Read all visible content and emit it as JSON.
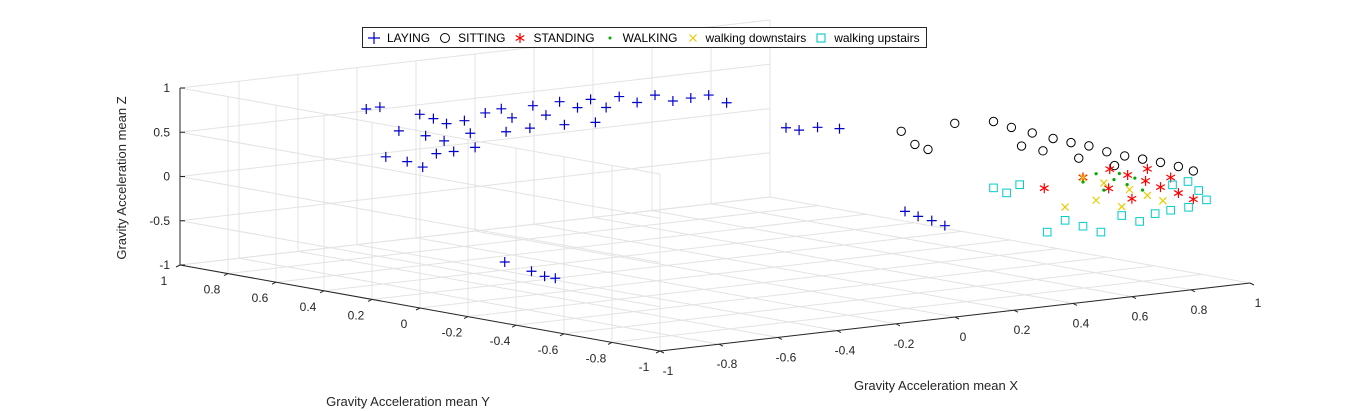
{
  "chart_data": {
    "type": "scatter3d",
    "title": "",
    "xlabel": "Gravity Acceleration mean X",
    "ylabel": "Gravity Acceleration mean Y",
    "zlabel": "Gravity Acceleration mean Z",
    "xlim": [
      -1,
      1
    ],
    "ylim": [
      -1,
      1
    ],
    "zlim": [
      -1,
      1
    ],
    "xticks": [
      "-1",
      "-0.8",
      "-0.6",
      "-0.4",
      "-0.2",
      "0",
      "0.2",
      "0.4",
      "0.6",
      "0.8",
      "1"
    ],
    "yticks": [
      "-1",
      "-0.8",
      "-0.6",
      "-0.4",
      "-0.2",
      "0",
      "0.2",
      "0.4",
      "0.6",
      "0.8",
      "1"
    ],
    "zticks": [
      "-1",
      "-0.5",
      "0",
      "0.5",
      "1"
    ],
    "grid": true,
    "legend_position": "top-center",
    "series": [
      {
        "name": "LAYING",
        "marker": "+",
        "color": "#0000cc",
        "points": [
          [
            -0.35,
            0.8,
            0.55
          ],
          [
            -0.32,
            0.78,
            0.5
          ],
          [
            -0.3,
            0.75,
            0.45
          ],
          [
            -0.28,
            0.7,
            0.5
          ],
          [
            -0.38,
            0.85,
            0.35
          ],
          [
            -0.33,
            0.8,
            0.3
          ],
          [
            -0.3,
            0.76,
            0.25
          ],
          [
            -0.26,
            0.7,
            0.35
          ],
          [
            -0.4,
            0.88,
            0.05
          ],
          [
            -0.36,
            0.84,
            0.0
          ],
          [
            -0.34,
            0.8,
            -0.05
          ],
          [
            -0.31,
            0.78,
            0.1
          ],
          [
            -0.25,
            0.65,
            0.6
          ],
          [
            -0.22,
            0.62,
            0.65
          ],
          [
            -0.2,
            0.6,
            0.55
          ],
          [
            -0.17,
            0.55,
            0.7
          ],
          [
            -0.15,
            0.52,
            0.6
          ],
          [
            -0.12,
            0.5,
            0.75
          ],
          [
            -0.1,
            0.45,
            0.7
          ],
          [
            -0.08,
            0.42,
            0.8
          ],
          [
            -0.06,
            0.38,
            0.72
          ],
          [
            -0.04,
            0.35,
            0.85
          ],
          [
            -0.02,
            0.3,
            0.8
          ],
          [
            0.0,
            0.25,
            0.9
          ],
          [
            0.02,
            0.2,
            0.85
          ],
          [
            0.04,
            0.15,
            0.9
          ],
          [
            0.06,
            0.1,
            0.95
          ],
          [
            0.08,
            0.05,
            0.88
          ],
          [
            -0.45,
            0.9,
            0.6
          ],
          [
            -0.42,
            0.88,
            0.62
          ],
          [
            -0.22,
            0.6,
            0.4
          ],
          [
            -0.18,
            0.55,
            0.45
          ],
          [
            -0.12,
            0.48,
            0.5
          ],
          [
            -0.08,
            0.4,
            0.55
          ],
          [
            -0.3,
            0.72,
            0.15
          ],
          [
            -0.26,
            0.68,
            0.2
          ],
          [
            0.2,
            -0.05,
            0.6
          ],
          [
            0.22,
            -0.08,
            0.58
          ],
          [
            0.25,
            -0.12,
            0.62
          ],
          [
            0.3,
            -0.15,
            0.6
          ],
          [
            0.4,
            -0.3,
            -0.3
          ],
          [
            0.42,
            -0.33,
            -0.35
          ],
          [
            0.45,
            -0.35,
            -0.4
          ],
          [
            0.47,
            -0.38,
            -0.45
          ],
          [
            -0.55,
            0.2,
            -0.75
          ],
          [
            -0.5,
            0.15,
            -0.85
          ],
          [
            -0.48,
            0.12,
            -0.9
          ],
          [
            -0.46,
            0.1,
            -0.92
          ]
        ]
      },
      {
        "name": "SITTING",
        "marker": "o",
        "color": "#000000",
        "points": [
          [
            0.55,
            -0.1,
            0.45
          ],
          [
            0.58,
            -0.12,
            0.3
          ],
          [
            0.6,
            -0.15,
            0.25
          ],
          [
            0.65,
            -0.2,
            0.55
          ],
          [
            0.7,
            -0.3,
            0.6
          ],
          [
            0.72,
            -0.35,
            0.55
          ],
          [
            0.75,
            -0.4,
            0.5
          ],
          [
            0.78,
            -0.45,
            0.45
          ],
          [
            0.8,
            -0.5,
            0.42
          ],
          [
            0.82,
            -0.55,
            0.4
          ],
          [
            0.84,
            -0.6,
            0.35
          ],
          [
            0.86,
            -0.65,
            0.32
          ],
          [
            0.88,
            -0.7,
            0.3
          ],
          [
            0.9,
            -0.75,
            0.28
          ],
          [
            0.92,
            -0.8,
            0.25
          ],
          [
            0.93,
            -0.85,
            0.22
          ],
          [
            0.73,
            -0.38,
            0.35
          ],
          [
            0.77,
            -0.42,
            0.3
          ],
          [
            0.81,
            -0.52,
            0.25
          ],
          [
            0.85,
            -0.62,
            0.2
          ]
        ]
      },
      {
        "name": "STANDING",
        "marker": "*",
        "color": "#ff0000",
        "points": [
          [
            0.85,
            -0.6,
            0.15
          ],
          [
            0.87,
            -0.65,
            0.1
          ],
          [
            0.89,
            -0.7,
            0.05
          ],
          [
            0.9,
            -0.75,
            0.0
          ],
          [
            0.92,
            -0.8,
            -0.05
          ],
          [
            0.93,
            -0.85,
            -0.1
          ],
          [
            0.8,
            -0.55,
            0.05
          ],
          [
            0.83,
            -0.62,
            -0.05
          ],
          [
            0.86,
            -0.68,
            -0.15
          ],
          [
            0.75,
            -0.45,
            -0.1
          ],
          [
            0.88,
            -0.72,
            0.2
          ],
          [
            0.91,
            -0.78,
            0.12
          ]
        ]
      },
      {
        "name": "WALKING",
        "marker": ".",
        "color": "#00aa00",
        "points": [
          [
            0.82,
            -0.58,
            0.1
          ],
          [
            0.84,
            -0.63,
            0.05
          ],
          [
            0.86,
            -0.66,
            0.0
          ],
          [
            0.88,
            -0.7,
            -0.05
          ],
          [
            0.8,
            -0.55,
            0.0
          ],
          [
            0.83,
            -0.6,
            -0.08
          ],
          [
            0.85,
            -0.64,
            0.12
          ],
          [
            0.87,
            -0.68,
            0.08
          ]
        ]
      },
      {
        "name": "walking downstairs",
        "marker": "x",
        "color": "#e6cc00",
        "points": [
          [
            0.8,
            -0.55,
            0.05
          ],
          [
            0.83,
            -0.6,
            0.0
          ],
          [
            0.86,
            -0.67,
            -0.05
          ],
          [
            0.88,
            -0.72,
            -0.1
          ],
          [
            0.9,
            -0.76,
            -0.15
          ],
          [
            0.82,
            -0.58,
            -0.2
          ],
          [
            0.85,
            -0.65,
            -0.25
          ],
          [
            0.78,
            -0.5,
            -0.3
          ]
        ]
      },
      {
        "name": "walking upstairs",
        "marker": "s",
        "color": "#00cccc",
        "points": [
          [
            0.7,
            -0.3,
            -0.15
          ],
          [
            0.72,
            -0.33,
            -0.2
          ],
          [
            0.74,
            -0.36,
            -0.1
          ],
          [
            0.85,
            -0.65,
            -0.35
          ],
          [
            0.87,
            -0.7,
            -0.4
          ],
          [
            0.89,
            -0.74,
            -0.3
          ],
          [
            0.91,
            -0.78,
            -0.25
          ],
          [
            0.93,
            -0.83,
            -0.2
          ],
          [
            0.95,
            -0.88,
            -0.1
          ],
          [
            0.94,
            -0.86,
            0.0
          ],
          [
            0.8,
            -0.55,
            -0.5
          ],
          [
            0.82,
            -0.6,
            -0.55
          ],
          [
            0.76,
            -0.45,
            -0.6
          ],
          [
            0.78,
            -0.5,
            -0.45
          ],
          [
            0.9,
            -0.8,
            0.05
          ],
          [
            0.92,
            -0.84,
            0.1
          ]
        ]
      }
    ]
  }
}
